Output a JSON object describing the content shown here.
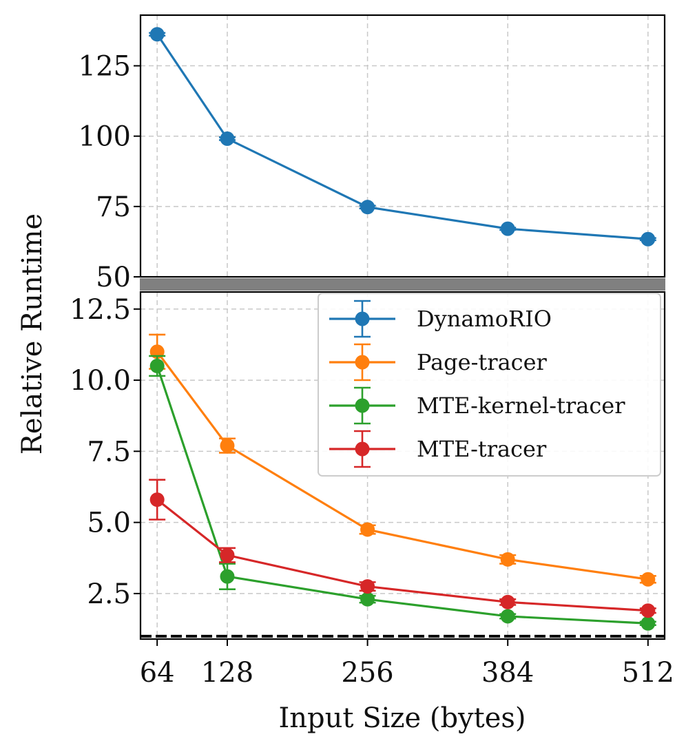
{
  "chart_data": {
    "type": "line",
    "xlabel": "Input Size (bytes)",
    "ylabel": "Relative Runtime",
    "x": [
      64,
      128,
      256,
      384,
      512
    ],
    "x_tick_labels": [
      "64",
      "128",
      "256",
      "384",
      "512"
    ],
    "top_panel": {
      "ylim": [
        50,
        143
      ],
      "y_ticks": [
        50,
        75,
        100,
        125
      ],
      "y_tick_labels": [
        "50",
        "75",
        "100",
        "125"
      ]
    },
    "bottom_panel": {
      "ylim": [
        0.9,
        13.1
      ],
      "y_ticks": [
        2.5,
        5.0,
        7.5,
        10.0,
        12.5
      ],
      "y_tick_labels": [
        "2.5",
        "5.0",
        "7.5",
        "10.0",
        "12.5"
      ],
      "baseline": 1.0
    },
    "grid": true,
    "legend_position": "top-right of bottom panel",
    "series": [
      {
        "name": "DynamoRIO",
        "color": "#1f77b4",
        "panel": "top",
        "values": [
          136.2,
          99.1,
          74.8,
          67.1,
          63.4
        ],
        "errors": [
          0.5,
          0.5,
          0.5,
          0.4,
          0.4
        ]
      },
      {
        "name": "Page-tracer",
        "color": "#ff7f0e",
        "panel": "bottom",
        "values": [
          11.0,
          7.7,
          4.75,
          3.7,
          3.0
        ],
        "errors": [
          0.6,
          0.25,
          0.15,
          0.15,
          0.12
        ]
      },
      {
        "name": "MTE-kernel-tracer",
        "color": "#2ca02c",
        "panel": "bottom",
        "values": [
          10.5,
          3.1,
          2.3,
          1.7,
          1.45
        ],
        "errors": [
          0.35,
          0.45,
          0.12,
          0.08,
          0.06
        ]
      },
      {
        "name": "MTE-tracer",
        "color": "#d62728",
        "panel": "bottom",
        "values": [
          5.8,
          3.85,
          2.75,
          2.2,
          1.9
        ],
        "errors": [
          0.7,
          0.25,
          0.15,
          0.1,
          0.08
        ]
      }
    ]
  }
}
